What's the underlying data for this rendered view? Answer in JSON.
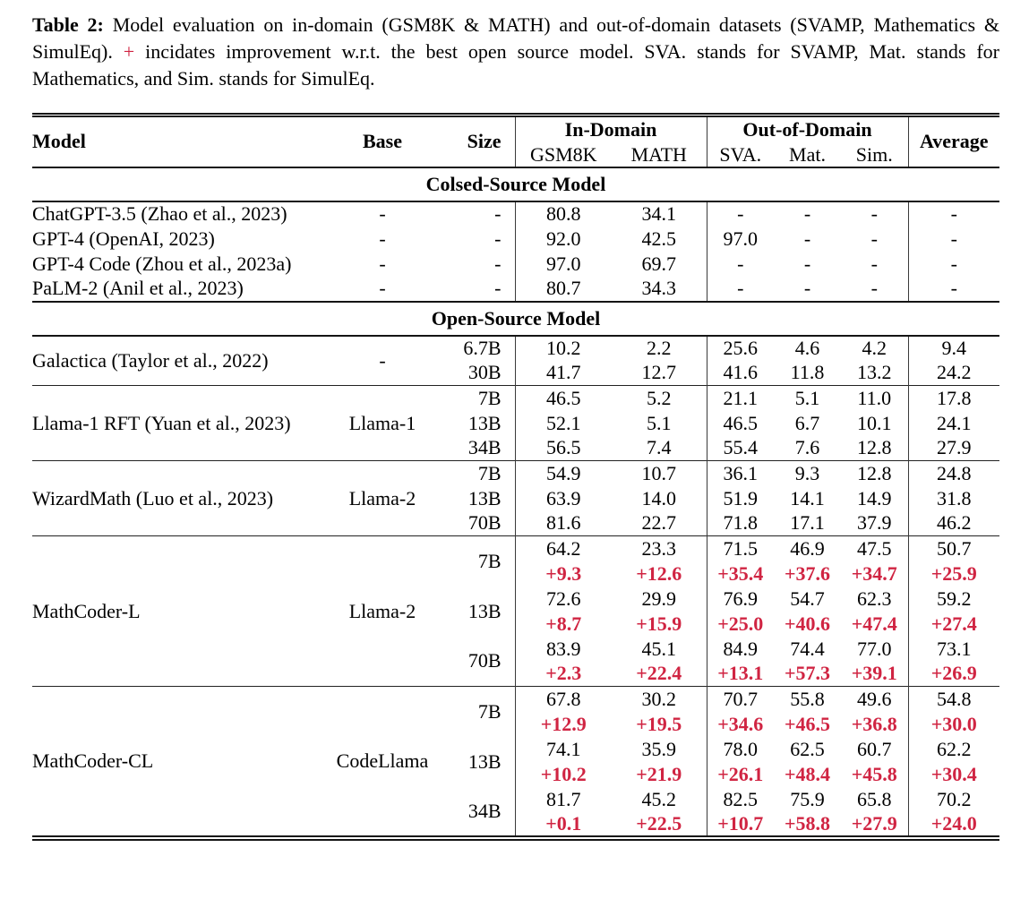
{
  "caption": {
    "label": "Table 2:",
    "text_before_plus": "Model evaluation on in-domain (GSM8K & MATH) and out-of-domain datasets (SVAMP, Mathematics & SimulEq).",
    "plus_sign": "+",
    "text_after_plus": "incidates improvement w.r.t. the best open source model. SVA. stands for SVAMP, Mat. stands for Mathematics, and Sim. stands for SimulEq."
  },
  "colors": {
    "accent_red": "#d02442",
    "rule_dark": "#141414"
  },
  "table": {
    "header": {
      "model": "Model",
      "base": "Base",
      "size": "Size",
      "in_domain": "In-Domain",
      "out_of_domain": "Out-of-Domain",
      "average": "Average",
      "sub_columns": [
        "GSM8K",
        "MATH",
        "SVA.",
        "Mat.",
        "Sim."
      ]
    },
    "sections": [
      {
        "title": "Colsed-Source Model",
        "divided": false,
        "groups": [
          {
            "model": "ChatGPT-3.5 (Zhao et al., 2023)",
            "base": "-",
            "rows": [
              {
                "size": "-",
                "values": [
                  "80.8",
                  "34.1",
                  "-",
                  "-",
                  "-",
                  "-"
                ]
              }
            ]
          },
          {
            "model": "GPT-4 (OpenAI, 2023)",
            "base": "-",
            "rows": [
              {
                "size": "-",
                "values": [
                  "92.0",
                  "42.5",
                  "97.0",
                  "-",
                  "-",
                  "-"
                ]
              }
            ]
          },
          {
            "model": "GPT-4 Code (Zhou et al., 2023a)",
            "base": "-",
            "rows": [
              {
                "size": "-",
                "values": [
                  "97.0",
                  "69.7",
                  "-",
                  "-",
                  "-",
                  "-"
                ]
              }
            ]
          },
          {
            "model": "PaLM-2 (Anil et al., 2023)",
            "base": "-",
            "rows": [
              {
                "size": "-",
                "values": [
                  "80.7",
                  "34.3",
                  "-",
                  "-",
                  "-",
                  "-"
                ]
              }
            ]
          }
        ]
      },
      {
        "title": "Open-Source Model",
        "divided": true,
        "groups": [
          {
            "model": "Galactica (Taylor et al., 2022)",
            "base": "-",
            "rows": [
              {
                "size": "6.7B",
                "values": [
                  "10.2",
                  "2.2",
                  "25.6",
                  "4.6",
                  "4.2",
                  "9.4"
                ]
              },
              {
                "size": "30B",
                "values": [
                  "41.7",
                  "12.7",
                  "41.6",
                  "11.8",
                  "13.2",
                  "24.2"
                ]
              }
            ]
          },
          {
            "model": "Llama-1 RFT (Yuan et al., 2023)",
            "base": "Llama-1",
            "rows": [
              {
                "size": "7B",
                "values": [
                  "46.5",
                  "5.2",
                  "21.1",
                  "5.1",
                  "11.0",
                  "17.8"
                ]
              },
              {
                "size": "13B",
                "values": [
                  "52.1",
                  "5.1",
                  "46.5",
                  "6.7",
                  "10.1",
                  "24.1"
                ]
              },
              {
                "size": "34B",
                "values": [
                  "56.5",
                  "7.4",
                  "55.4",
                  "7.6",
                  "12.8",
                  "27.9"
                ]
              }
            ]
          },
          {
            "model": "WizardMath (Luo et al., 2023)",
            "base": "Llama-2",
            "rows": [
              {
                "size": "7B",
                "values": [
                  "54.9",
                  "10.7",
                  "36.1",
                  "9.3",
                  "12.8",
                  "24.8"
                ]
              },
              {
                "size": "13B",
                "values": [
                  "63.9",
                  "14.0",
                  "51.9",
                  "14.1",
                  "14.9",
                  "31.8"
                ]
              },
              {
                "size": "70B",
                "values": [
                  "81.6",
                  "22.7",
                  "71.8",
                  "17.1",
                  "37.9",
                  "46.2"
                ]
              }
            ]
          },
          {
            "model": "MathCoder-L",
            "base": "Llama-2",
            "rows": [
              {
                "size": "7B",
                "values": [
                  "64.2",
                  "23.3",
                  "71.5",
                  "46.9",
                  "47.5",
                  "50.7"
                ],
                "deltas": [
                  "+9.3",
                  "+12.6",
                  "+35.4",
                  "+37.6",
                  "+34.7",
                  "+25.9"
                ]
              },
              {
                "size": "13B",
                "values": [
                  "72.6",
                  "29.9",
                  "76.9",
                  "54.7",
                  "62.3",
                  "59.2"
                ],
                "deltas": [
                  "+8.7",
                  "+15.9",
                  "+25.0",
                  "+40.6",
                  "+47.4",
                  "+27.4"
                ]
              },
              {
                "size": "70B",
                "values": [
                  "83.9",
                  "45.1",
                  "84.9",
                  "74.4",
                  "77.0",
                  "73.1"
                ],
                "deltas": [
                  "+2.3",
                  "+22.4",
                  "+13.1",
                  "+57.3",
                  "+39.1",
                  "+26.9"
                ]
              }
            ]
          },
          {
            "model": "MathCoder-CL",
            "base": "CodeLlama",
            "rows": [
              {
                "size": "7B",
                "values": [
                  "67.8",
                  "30.2",
                  "70.7",
                  "55.8",
                  "49.6",
                  "54.8"
                ],
                "deltas": [
                  "+12.9",
                  "+19.5",
                  "+34.6",
                  "+46.5",
                  "+36.8",
                  "+30.0"
                ]
              },
              {
                "size": "13B",
                "values": [
                  "74.1",
                  "35.9",
                  "78.0",
                  "62.5",
                  "60.7",
                  "62.2"
                ],
                "deltas": [
                  "+10.2",
                  "+21.9",
                  "+26.1",
                  "+48.4",
                  "+45.8",
                  "+30.4"
                ]
              },
              {
                "size": "34B",
                "values": [
                  "81.7",
                  "45.2",
                  "82.5",
                  "75.9",
                  "65.8",
                  "70.2"
                ],
                "deltas": [
                  "+0.1",
                  "+22.5",
                  "+10.7",
                  "+58.8",
                  "+27.9",
                  "+24.0"
                ]
              }
            ]
          }
        ]
      }
    ]
  }
}
